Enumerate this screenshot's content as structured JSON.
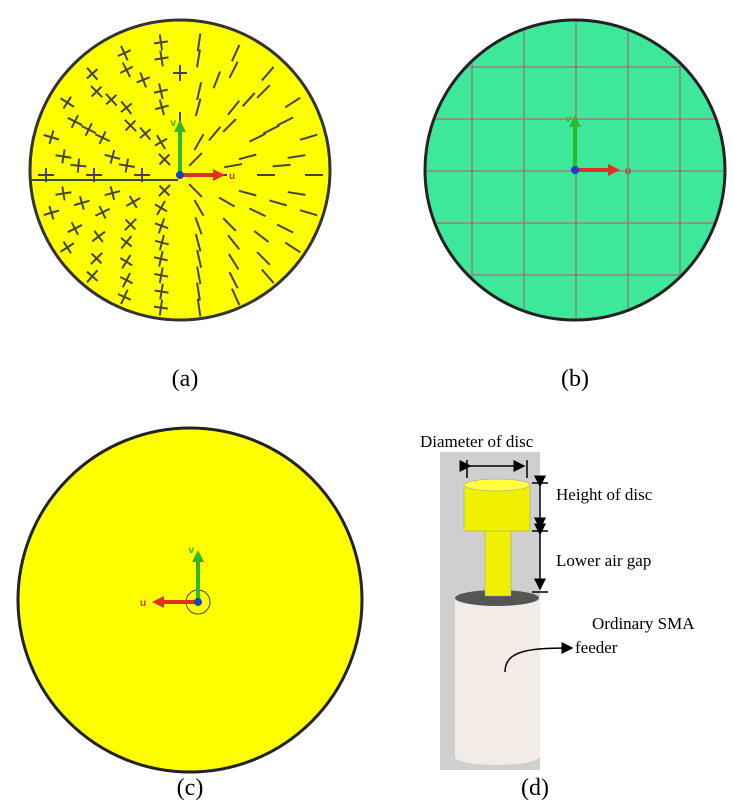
{
  "panels": [
    {
      "label": "(a)",
      "u": "u",
      "v": "v"
    },
    {
      "label": "(b)",
      "u": "u",
      "v": "v"
    },
    {
      "label": "(c)",
      "u": "u",
      "v": "v"
    },
    {
      "label": "(d)",
      "annotations": [
        "Diameter of disc",
        "Height of disc",
        "Lower air gap",
        "Ordinary SMA",
        "feeder"
      ]
    }
  ]
}
